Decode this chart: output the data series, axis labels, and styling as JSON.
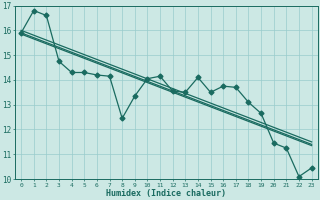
{
  "xlabel": "Humidex (Indice chaleur)",
  "bg_color": "#cce8e4",
  "grid_color": "#99cccc",
  "line_color": "#1a6b60",
  "xlim": [
    -0.5,
    23.5
  ],
  "ylim": [
    10,
    17
  ],
  "yticks": [
    10,
    11,
    12,
    13,
    14,
    15,
    16,
    17
  ],
  "xticks": [
    0,
    1,
    2,
    3,
    4,
    5,
    6,
    7,
    8,
    9,
    10,
    11,
    12,
    13,
    14,
    15,
    16,
    17,
    18,
    19,
    20,
    21,
    22,
    23
  ],
  "series_x": [
    0,
    1,
    2,
    3,
    4,
    5,
    6,
    7,
    8,
    9,
    10,
    11,
    12,
    13,
    14,
    15,
    16,
    17,
    18,
    19,
    20,
    21,
    22,
    23
  ],
  "series_y": [
    15.9,
    16.8,
    16.6,
    14.75,
    14.3,
    14.3,
    14.2,
    14.15,
    12.45,
    13.35,
    14.05,
    14.15,
    13.55,
    13.5,
    14.1,
    13.5,
    13.75,
    13.7,
    13.1,
    12.65,
    11.45,
    11.25,
    10.1,
    10.45
  ],
  "trend1_x": [
    0,
    23
  ],
  "trend1_y": [
    15.85,
    11.35
  ],
  "trend2_x": [
    0,
    23
  ],
  "trend2_y": [
    16.0,
    11.5
  ],
  "trend3_x": [
    0,
    23
  ],
  "trend3_y": [
    15.9,
    11.4
  ],
  "markersize": 2.5,
  "linewidth": 0.9
}
